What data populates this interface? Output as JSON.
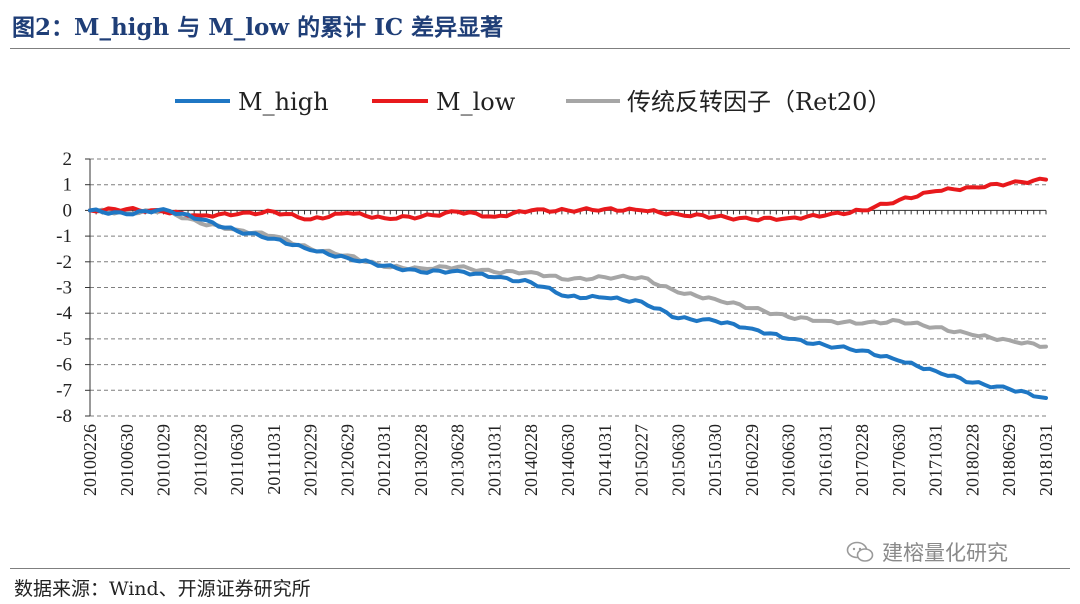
{
  "figure": {
    "title": "图2：M_high 与 M_low 的累计 IC 差异显著",
    "source": "数据来源：Wind、开源证券研究所",
    "watermark": "建榕量化研究"
  },
  "colors": {
    "M_high": "#1f77c4",
    "M_low": "#e8191c",
    "Ret20": "#a6a6a6",
    "title": "#1f3e77",
    "grid": "#7f7f7f"
  },
  "chart_data": {
    "type": "line",
    "legend": [
      "M_high",
      "M_low",
      "传统反转因子（Ret20）"
    ],
    "legend_placement": "top",
    "ylim": [
      -8,
      2
    ],
    "yticks": [
      2,
      1,
      0,
      -1,
      -2,
      -3,
      -4,
      -5,
      -6,
      -7,
      -8
    ],
    "grid": "horizontal dashed",
    "x": [
      "20100226",
      "20100630",
      "20101029",
      "20110228",
      "20110630",
      "20111031",
      "20120229",
      "20120629",
      "20121031",
      "20130228",
      "20130628",
      "20131031",
      "20140228",
      "20140630",
      "20141031",
      "20150227",
      "20150630",
      "20151030",
      "20160229",
      "20160630",
      "20161031",
      "20170228",
      "20170630",
      "20171031",
      "20180228",
      "20180629",
      "20181031"
    ],
    "series": [
      {
        "name": "M_high",
        "values": [
          0,
          -0.15,
          0.05,
          -0.35,
          -0.8,
          -1.1,
          -1.55,
          -1.85,
          -2.15,
          -2.4,
          -2.35,
          -2.6,
          -2.8,
          -3.35,
          -3.4,
          -3.55,
          -4.2,
          -4.3,
          -4.6,
          -5.0,
          -5.25,
          -5.45,
          -5.85,
          -6.25,
          -6.7,
          -6.95,
          -7.3
        ]
      },
      {
        "name": "M_low",
        "values": [
          0,
          0.05,
          -0.05,
          -0.2,
          -0.15,
          -0.05,
          -0.35,
          -0.1,
          -0.3,
          -0.25,
          -0.05,
          -0.25,
          0.0,
          0.0,
          0.05,
          0.0,
          -0.15,
          -0.25,
          -0.35,
          -0.3,
          -0.2,
          0.0,
          0.4,
          0.75,
          0.9,
          1.05,
          1.2
        ]
      },
      {
        "name": "传统反转因子（Ret20）",
        "values": [
          0,
          -0.1,
          0.0,
          -0.5,
          -0.75,
          -1.0,
          -1.5,
          -1.75,
          -2.2,
          -2.25,
          -2.2,
          -2.4,
          -2.4,
          -2.7,
          -2.6,
          -2.6,
          -3.2,
          -3.45,
          -3.8,
          -4.15,
          -4.3,
          -4.4,
          -4.3,
          -4.55,
          -4.85,
          -5.05,
          -5.3
        ]
      }
    ]
  }
}
